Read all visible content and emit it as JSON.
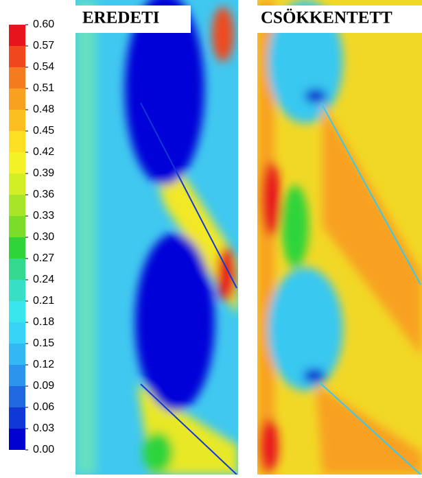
{
  "chart_data": {
    "type": "contour",
    "panels": [
      {
        "title": "EREDETI"
      },
      {
        "title": "CSÖKKENTETT"
      }
    ],
    "colorbar": {
      "lim": [
        0,
        0.6
      ],
      "ticks": [
        {
          "value": 0.6,
          "label": "0.60"
        },
        {
          "value": 0.57,
          "label": "0.57"
        },
        {
          "value": 0.54,
          "label": "0.54"
        },
        {
          "value": 0.51,
          "label": "0.51"
        },
        {
          "value": 0.48,
          "label": "0.48"
        },
        {
          "value": 0.45,
          "label": "0.45"
        },
        {
          "value": 0.42,
          "label": "0.42"
        },
        {
          "value": 0.39,
          "label": "0.39"
        },
        {
          "value": 0.36,
          "label": "0.36"
        },
        {
          "value": 0.33,
          "label": "0.33"
        },
        {
          "value": 0.3,
          "label": "0.30"
        },
        {
          "value": 0.27,
          "label": "0.27"
        },
        {
          "value": 0.24,
          "label": "0.24"
        },
        {
          "value": 0.21,
          "label": "0.21"
        },
        {
          "value": 0.18,
          "label": "0.18"
        },
        {
          "value": 0.15,
          "label": "0.15"
        },
        {
          "value": 0.12,
          "label": "0.12"
        },
        {
          "value": 0.09,
          "label": "0.09"
        },
        {
          "value": 0.06,
          "label": "0.06"
        },
        {
          "value": 0.03,
          "label": "0.03"
        },
        {
          "value": 0,
          "label": "0.00"
        }
      ],
      "colors": [
        "#e8141c",
        "#f0481c",
        "#f57c1e",
        "#f8a020",
        "#fbbf22",
        "#fde024",
        "#f2f226",
        "#d2ef26",
        "#a8e528",
        "#7bdc2a",
        "#2ed43a",
        "#33d98e",
        "#37e0c4",
        "#3ae6ee",
        "#38d4f8",
        "#34b8f4",
        "#2c94ec",
        "#2068e0",
        "#1038d6",
        "#0000d0"
      ]
    }
  }
}
